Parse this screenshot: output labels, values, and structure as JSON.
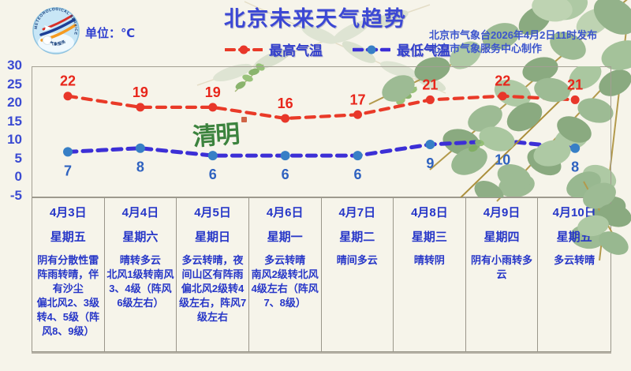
{
  "header": {
    "title": "北京未来天气趋势",
    "unit_label": "单位：℃",
    "issued_line1": "北京市气象台2026年4月2日11时发布",
    "issued_line2": "北京市气象服务中心制作",
    "logo_ring_text": "METEOROLOGICAL SERVICE",
    "logo_bottom_text": "气象服务"
  },
  "festival_mark": "清明",
  "chart_data": {
    "type": "line",
    "categories": [
      "4月3日",
      "4月4日",
      "4月5日",
      "4月6日",
      "4月7日",
      "4月8日",
      "4月9日",
      "4月10日"
    ],
    "series": [
      {
        "key": "high",
        "name": "最高气温",
        "values": [
          22,
          19,
          19,
          16,
          17,
          21,
          22,
          21
        ],
        "color": "#e93a28",
        "dot_color": "#e8372a",
        "label_color": "#e8261b",
        "width": 4.2
      },
      {
        "key": "low",
        "name": "最低气温",
        "values": [
          7,
          8,
          6,
          6,
          6,
          9,
          10,
          8
        ],
        "color": "#3c2fd6",
        "dot_color": "#377fc6",
        "label_color": "#2f62c0",
        "width": 5
      }
    ],
    "ylim": [
      -5,
      30
    ],
    "yticks": [
      30,
      25,
      20,
      15,
      10,
      5,
      0,
      -5
    ],
    "grid": false,
    "legend_position": "top-center"
  },
  "forecast_table": {
    "days": [
      {
        "date": "4月3日",
        "weekday": "星期五",
        "weather": "阴有分散性雷阵雨转晴，伴有沙尘",
        "wind": "偏北风2、3级转4、5级（阵风8、9级）"
      },
      {
        "date": "4月4日",
        "weekday": "星期六",
        "weather": "晴转多云",
        "wind": "北风1级转南风3、4级（阵风6级左右）"
      },
      {
        "date": "4月5日",
        "weekday": "星期日",
        "weather": "多云转晴，夜间山区有阵雨",
        "wind": "偏北风2级转4级左右，阵风7级左右"
      },
      {
        "date": "4月6日",
        "weekday": "星期一",
        "weather": "多云转晴",
        "wind": "南风2级转北风4级左右（阵风7、8级）"
      },
      {
        "date": "4月7日",
        "weekday": "星期二",
        "weather": "晴间多云",
        "wind": ""
      },
      {
        "date": "4月8日",
        "weekday": "星期三",
        "weather": "晴转阴",
        "wind": ""
      },
      {
        "date": "4月9日",
        "weekday": "星期四",
        "weather": "阴有小雨转多云",
        "wind": ""
      },
      {
        "date": "4月10日",
        "weekday": "星期五",
        "weather": "多云转晴",
        "wind": ""
      }
    ]
  },
  "colors": {
    "background": "#f6f4ea",
    "title": "#3c48d4",
    "axis_text": "#3a4ad2",
    "table_text": "#2636c8",
    "high_temp": "#e93a28",
    "low_temp_line": "#3c2fd6",
    "low_temp_dot": "#377fc6",
    "festival_green": "#2d7a30",
    "border": "#9a968a"
  }
}
